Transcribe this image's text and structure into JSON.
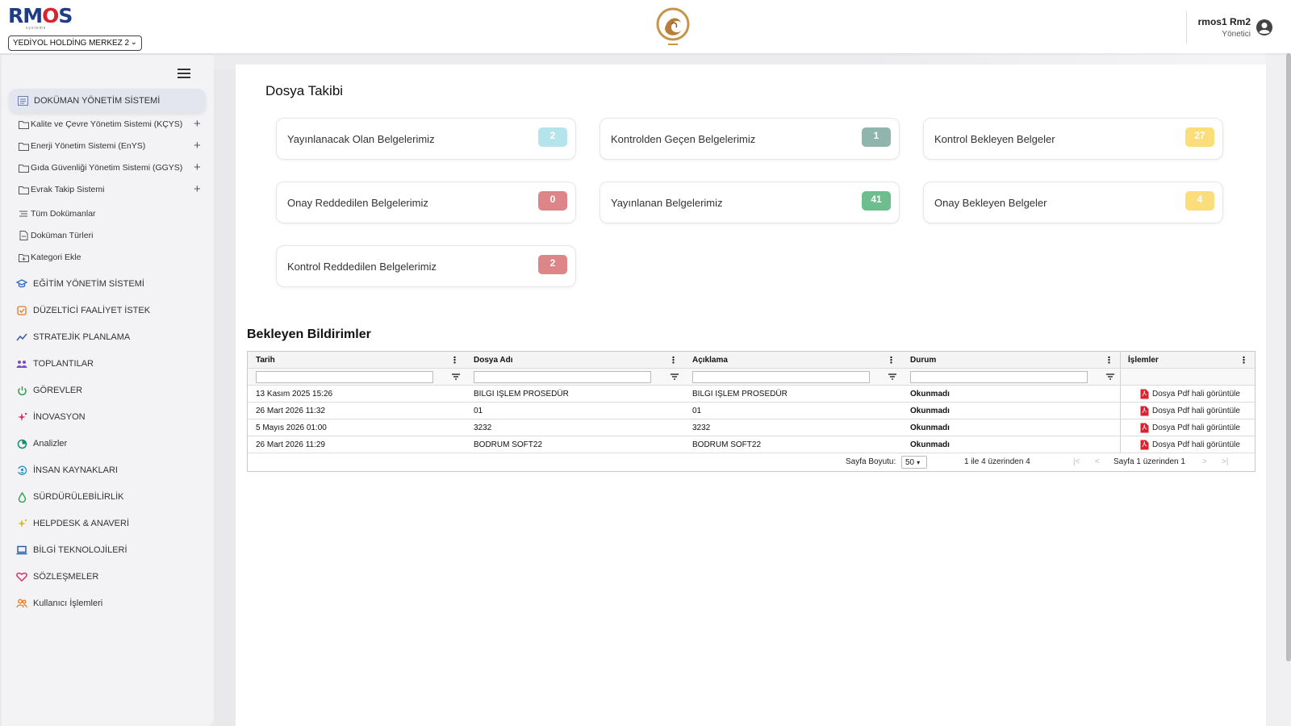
{
  "header": {
    "logo_text_a": "RM",
    "logo_text_b": "O",
    "logo_text_c": "S",
    "logo_sub": "systems",
    "company": "YEDİYOL HOLDİNG MERKEZ 2",
    "user_name": "rmos1 Rm2",
    "user_role": "Yönetici"
  },
  "sidebar": {
    "items": [
      {
        "label": "DOKÜMAN YÖNETİM SİSTEMİ",
        "icon": "document-icon",
        "color": "#6b7db3"
      },
      {
        "label": "Kalite ve Çevre Yönetim Sistemi (KÇYS)",
        "icon": "folder-icon",
        "expandable": "+"
      },
      {
        "label": "Enerji Yönetim Sistemi (EnYS)",
        "icon": "folder-icon",
        "expandable": "+"
      },
      {
        "label": "Gıda Güvenliği Yönetim Sistemi (GGYS)",
        "icon": "folder-icon",
        "expandable": "+"
      },
      {
        "label": "Evrak Takip Sistemi",
        "icon": "folder-icon",
        "expandable": "+"
      },
      {
        "label": "Tüm Dokümanlar",
        "icon": "list-icon"
      },
      {
        "label": "Doküman Türleri",
        "icon": "file-icon"
      },
      {
        "label": "Kategori Ekle",
        "icon": "folder-plus-icon"
      },
      {
        "label": "EĞİTİM YÖNETİM SİSTEMİ",
        "icon": "graduation-cap-icon",
        "color": "#2f6fc4"
      },
      {
        "label": "DÜZELTİCİ FAALİYET İSTEK",
        "icon": "checkbox-icon",
        "color": "#e07a1f"
      },
      {
        "label": "STRATEJİK PLANLAMA",
        "icon": "chart-line-icon",
        "color": "#3d56a6"
      },
      {
        "label": "TOPLANTILAR",
        "icon": "users-icon",
        "color": "#7a4fc0"
      },
      {
        "label": "GÖREVLER",
        "icon": "power-icon",
        "color": "#2aa24a"
      },
      {
        "label": "İNOVASYON",
        "icon": "sparkle-icon",
        "color": "#d4336b"
      },
      {
        "label": "Analizler",
        "icon": "pie-chart-icon",
        "color": "#1a8a74"
      },
      {
        "label": "İNSAN KAYNAKLARI",
        "icon": "refresh-user-icon",
        "color": "#2894c9"
      },
      {
        "label": "SÜRDÜRÜLEBİLİRLİK",
        "icon": "drop-icon",
        "color": "#2aa24a"
      },
      {
        "label": "HELPDESK & ANAVERİ",
        "icon": "star-sparkle-icon",
        "color": "#e0b81f"
      },
      {
        "label": "BİLGİ TEKNOLOJİLERİ",
        "icon": "laptop-icon",
        "color": "#1f5a9e"
      },
      {
        "label": "SÖZLEŞMELER",
        "icon": "heart-icon",
        "color": "#d4336b"
      },
      {
        "label": "Kullanıcı İşlemleri",
        "icon": "people-icon",
        "color": "#e07a1f"
      }
    ]
  },
  "main": {
    "title": "Dosya Takibi",
    "cards": [
      {
        "label": "Yayınlanacak Olan Belgelerimiz",
        "count": "2",
        "color": "#b6e4ec"
      },
      {
        "label": "Kontrolden Geçen Belgelerimiz",
        "count": "1",
        "color": "#8fb5ad"
      },
      {
        "label": "Kontrol Bekleyen Belgeler",
        "count": "27",
        "color": "#fbde7a"
      },
      {
        "label": "Onay Reddedilen Belgelerimiz",
        "count": "0",
        "color": "#de8589"
      },
      {
        "label": "Yayınlanan Belgelerimiz",
        "count": "41",
        "color": "#6dbd8e"
      },
      {
        "label": "Onay Bekleyen Belgeler",
        "count": "4",
        "color": "#fbde7a"
      },
      {
        "label": "Kontrol Reddedilen Belgelerimiz",
        "count": "2",
        "color": "#de8589"
      }
    ],
    "notifications_title": "Bekleyen Bildirimler",
    "grid": {
      "columns": [
        "Tarih",
        "Dosya Adı",
        "Açıklama",
        "Durum",
        "İşlemler"
      ],
      "rows": [
        {
          "date": "13 Kasım 2025 15:26",
          "file": "BILGI IŞLEM PROSEDÜR",
          "desc": "BILGI IŞLEM PROSEDÜR",
          "status": "Okunmadı",
          "action": "Dosya Pdf hali görüntüle"
        },
        {
          "date": "26 Mart 2026 11:32",
          "file": "01",
          "desc": "01",
          "status": "Okunmadı",
          "action": "Dosya Pdf hali görüntüle"
        },
        {
          "date": "5 Mayıs 2026 01:00",
          "file": "3232",
          "desc": "3232",
          "status": "Okunmadı",
          "action": "Dosya Pdf hali görüntüle"
        },
        {
          "date": "26 Mart 2026 11:29",
          "file": "BODRUM SOFT22",
          "desc": "BODRUM SOFT22",
          "status": "Okunmadı",
          "action": "Dosya Pdf hali görüntüle"
        }
      ],
      "page_size_label": "Sayfa Boyutu:",
      "page_size": "50",
      "range_text": "1 ile 4 üzerinden 4",
      "page_text": "Sayfa 1 üzerinden 1"
    }
  }
}
